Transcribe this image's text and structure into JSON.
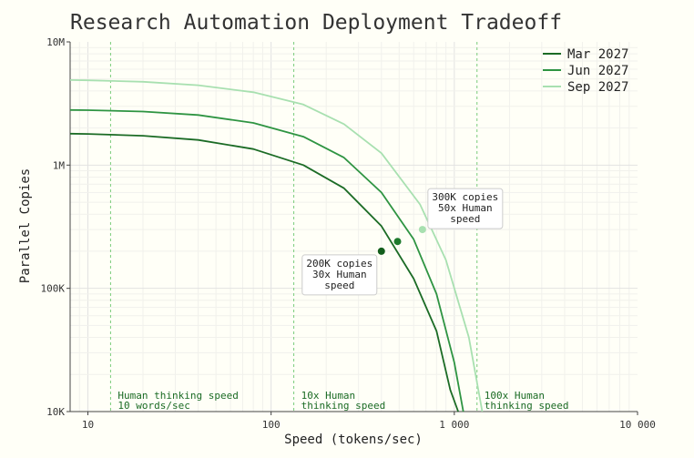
{
  "chart_data": {
    "type": "line",
    "title": "Research Automation Deployment Tradeoff",
    "xlabel": "Speed (tokens/sec)",
    "ylabel": "Parallel Copies",
    "x_scale": "log",
    "y_scale": "log",
    "xlim": [
      8,
      10000
    ],
    "ylim": [
      10000,
      10000000
    ],
    "x_ticks": [
      {
        "value": 10,
        "label": "10"
      },
      {
        "value": 100,
        "label": "100"
      },
      {
        "value": 1000,
        "label": "1 000"
      },
      {
        "value": 10000,
        "label": "10 000"
      }
    ],
    "y_ticks": [
      {
        "value": 10000,
        "label": "10K"
      },
      {
        "value": 100000,
        "label": "100K"
      },
      {
        "value": 1000000,
        "label": "1M"
      },
      {
        "value": 10000000,
        "label": "10M"
      }
    ],
    "grid": true,
    "legend_position": "top-right",
    "series": [
      {
        "name": "Mar 2027",
        "color": "#1b6b25",
        "x": [
          8,
          10,
          20,
          40,
          80,
          150,
          250,
          400,
          600,
          800,
          950,
          1050
        ],
        "y": [
          1800000,
          1790000,
          1730000,
          1600000,
          1350000,
          1000000,
          650000,
          320000,
          120000,
          45000,
          15000,
          10000
        ]
      },
      {
        "name": "Jun 2027",
        "color": "#2e9442",
        "x": [
          8,
          10,
          20,
          40,
          80,
          150,
          250,
          400,
          600,
          800,
          1000,
          1120
        ],
        "y": [
          2800000,
          2790000,
          2720000,
          2550000,
          2200000,
          1700000,
          1150000,
          600000,
          250000,
          90000,
          25000,
          10000
        ]
      },
      {
        "name": "Sep 2027",
        "color": "#a8e0b0",
        "x": [
          8,
          10,
          20,
          40,
          80,
          150,
          250,
          400,
          650,
          900,
          1200,
          1420
        ],
        "y": [
          4900000,
          4880000,
          4750000,
          4450000,
          3900000,
          3100000,
          2150000,
          1250000,
          480000,
          170000,
          40000,
          10000
        ]
      }
    ],
    "reference_lines": [
      {
        "x": 13.3,
        "label_line1": "Human thinking speed",
        "label_line2": "10 words/sec",
        "color": "#7acc7a",
        "text_color": "#1b6b25"
      },
      {
        "x": 133,
        "label_line1": "10x Human",
        "label_line2": "thinking speed",
        "color": "#7acc7a",
        "text_color": "#1b6b25"
      },
      {
        "x": 1330,
        "label_line1": "100x Human",
        "label_line2": "thinking speed",
        "color": "#7acc7a",
        "text_color": "#1b6b25"
      }
    ],
    "points": [
      {
        "x": 400,
        "y": 200000,
        "color": "#135e1c"
      },
      {
        "x": 490,
        "y": 240000,
        "color": "#1f7a2d"
      },
      {
        "x": 670,
        "y": 300000,
        "color": "#a8e0b0"
      }
    ],
    "annotations": [
      {
        "lines": [
          "200K copies",
          "30x Human",
          "speed"
        ],
        "anchor": "lower-left-of-point",
        "point_index": 0
      },
      {
        "lines": [
          "300K copies",
          "50x Human",
          "speed"
        ],
        "anchor": "upper-right-of-point",
        "point_index": 2
      }
    ]
  }
}
